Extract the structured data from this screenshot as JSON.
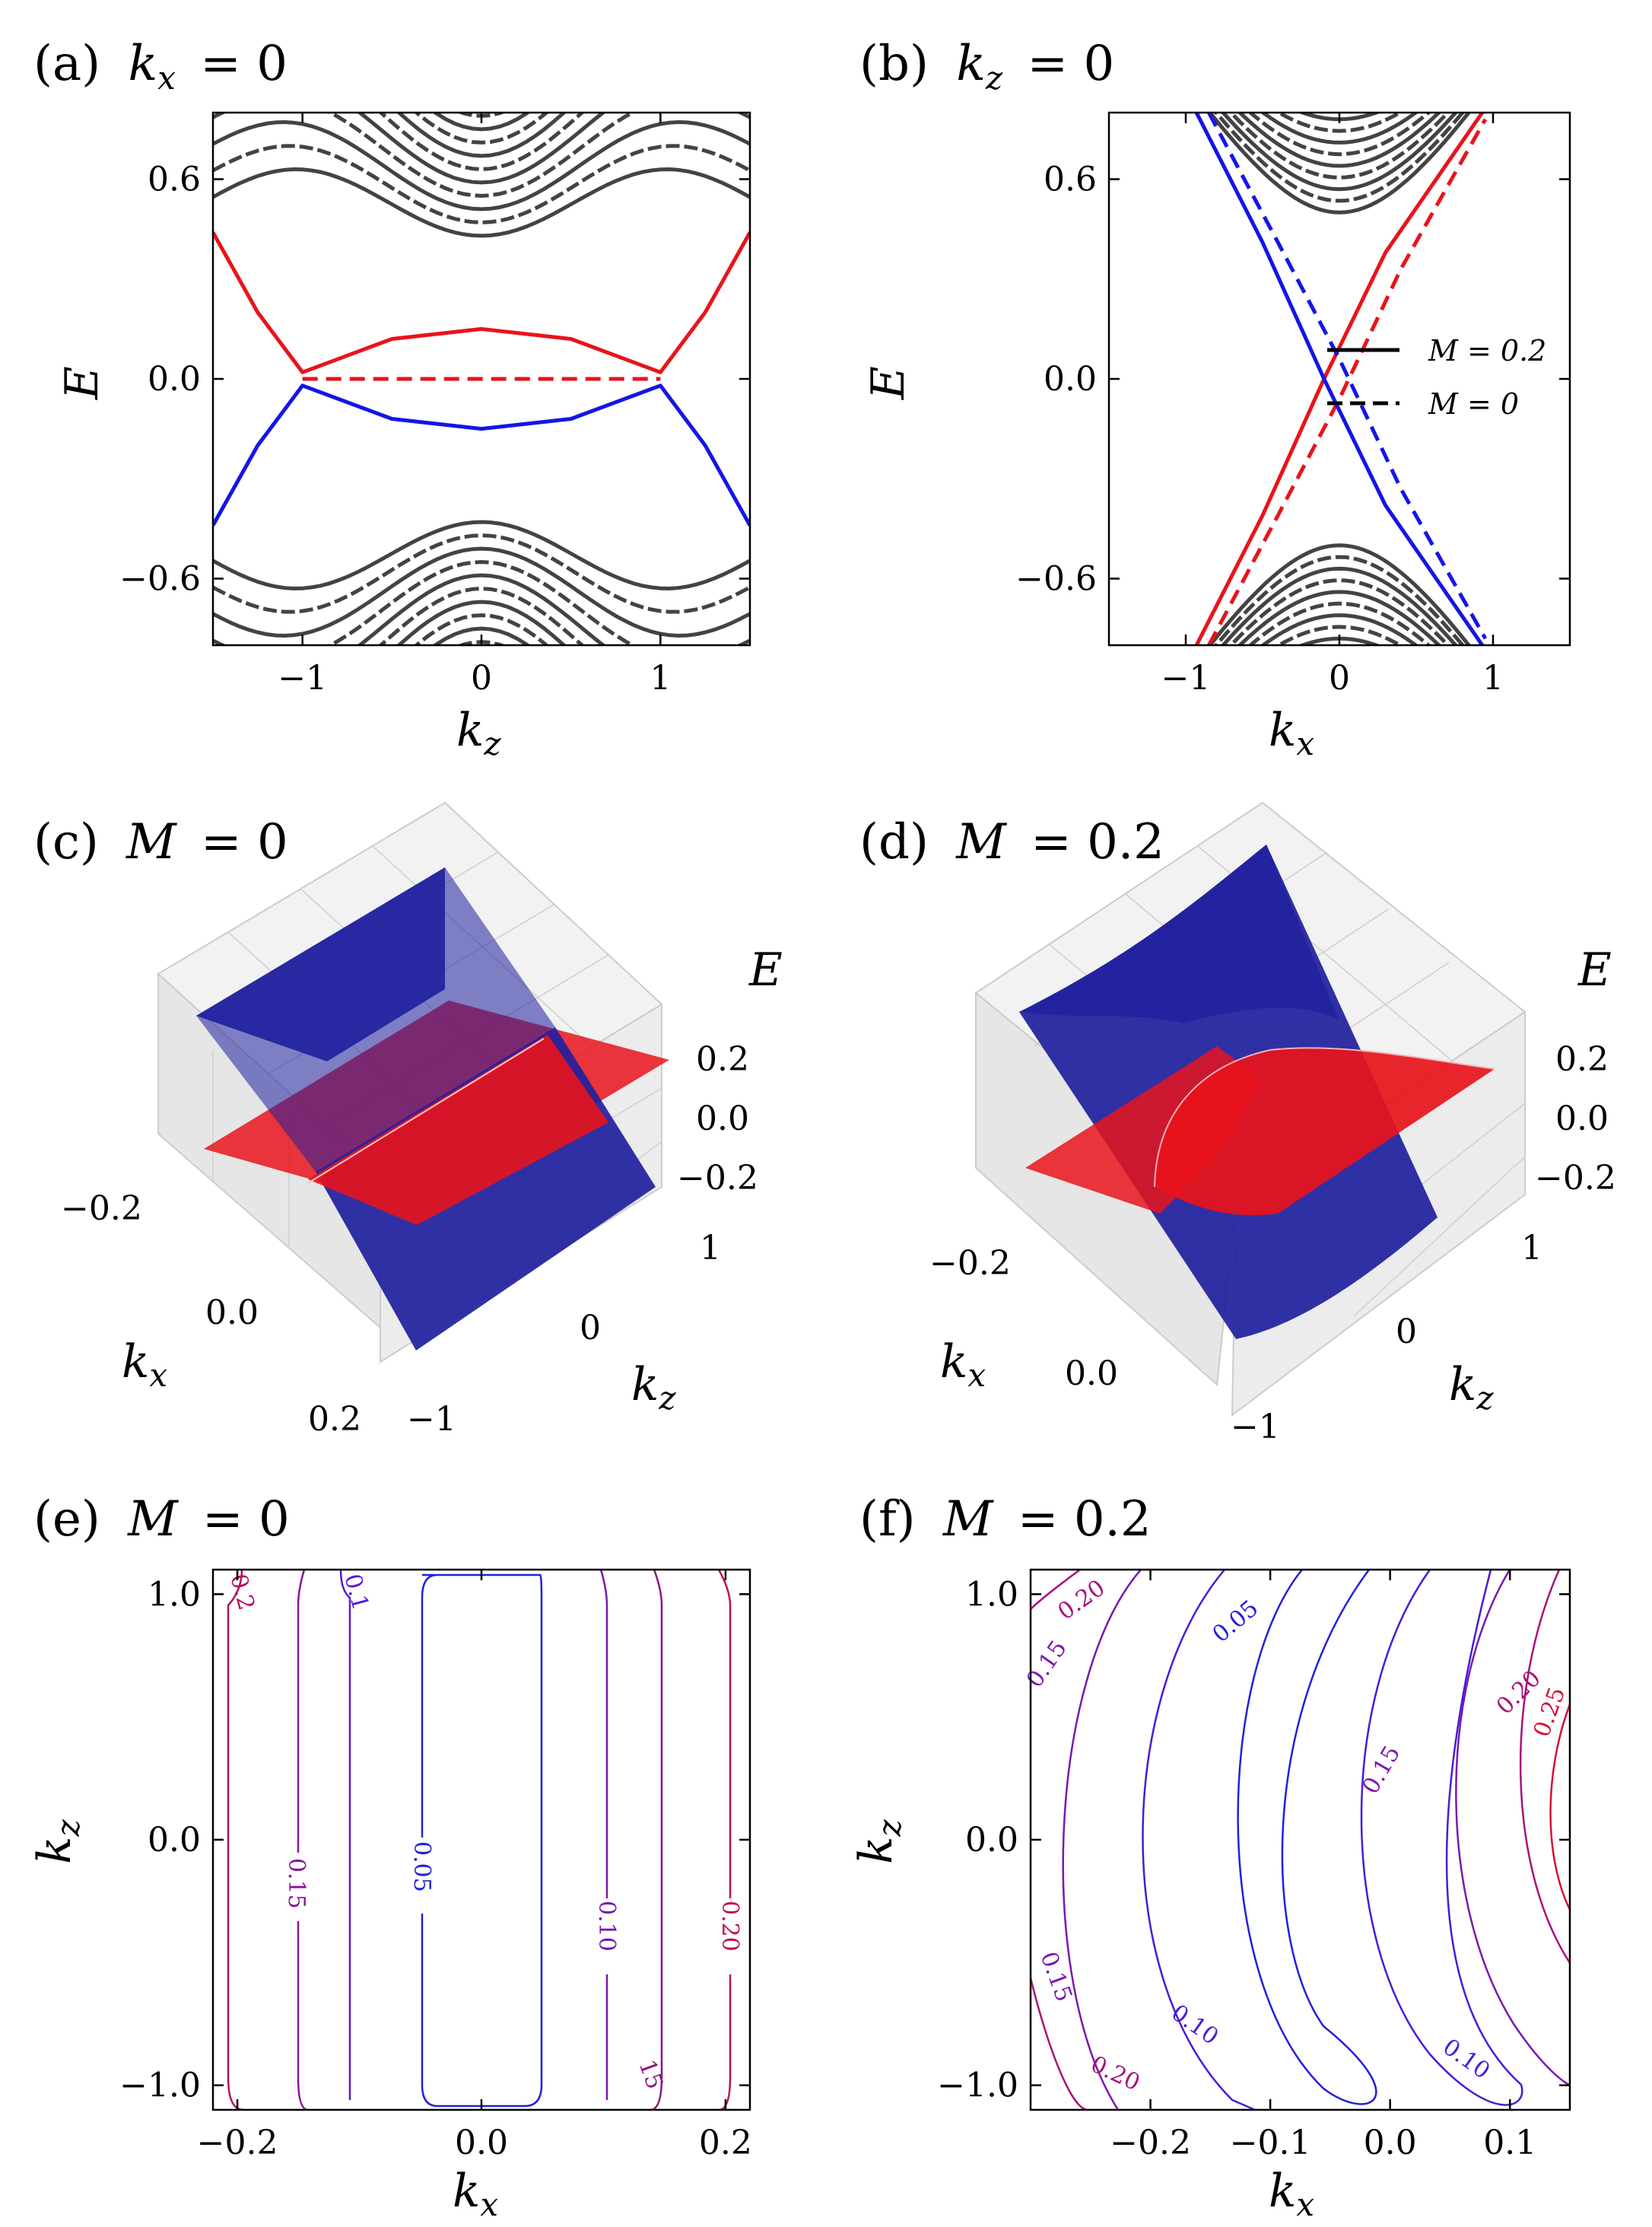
{
  "colors": {
    "red": "#e8141b",
    "blue": "#1515e6",
    "bulk": "#222222",
    "surf_blue": "#1f1f9e",
    "surf_red": "#e8141b"
  },
  "chart_data": [
    {
      "id": "a",
      "type": "line",
      "title": "(a) kx = 0",
      "title_prefix": "(a)",
      "title_var": "k",
      "title_sub": "x",
      "title_rest": "= 0",
      "xlabel": "k_z",
      "xlabel_main": "k",
      "xlabel_sub": "z",
      "ylabel": "E",
      "xlim": [
        -1.5,
        1.5
      ],
      "ylim": [
        -0.8,
        0.8
      ],
      "xticks": [
        -1,
        0,
        1
      ],
      "xtick_labels": [
        "−1",
        "0",
        "1"
      ],
      "yticks": [
        -0.6,
        0.0,
        0.6
      ],
      "ytick_labels": [
        "−0.6",
        "0.0",
        "0.6"
      ],
      "bulk_bands": {
        "description": "dense black solid/dashed bulk subbands",
        "gap_edge_at_k0": 0.5
      },
      "series": [
        {
          "color": "red",
          "style": "solid",
          "points": [
            [
              -1.5,
              0.44
            ],
            [
              -1.25,
              0.2
            ],
            [
              -1.0,
              0.02
            ],
            [
              -0.5,
              0.12
            ],
            [
              0,
              0.15
            ],
            [
              0.5,
              0.12
            ],
            [
              1.0,
              0.02
            ],
            [
              1.25,
              0.2
            ],
            [
              1.5,
              0.44
            ]
          ]
        },
        {
          "color": "red",
          "style": "dashed",
          "points": [
            [
              -1.0,
              0.0
            ],
            [
              1.0,
              0.0
            ]
          ]
        },
        {
          "color": "blue",
          "style": "solid",
          "points": [
            [
              -1.5,
              -0.44
            ],
            [
              -1.25,
              -0.2
            ],
            [
              -1.0,
              -0.02
            ],
            [
              -0.5,
              -0.12
            ],
            [
              0,
              -0.15
            ],
            [
              0.5,
              -0.12
            ],
            [
              1.0,
              -0.02
            ],
            [
              1.25,
              -0.2
            ],
            [
              1.5,
              -0.44
            ]
          ]
        }
      ]
    },
    {
      "id": "b",
      "type": "line",
      "title": "(b) kz = 0",
      "title_prefix": "(b)",
      "title_var": "k",
      "title_sub": "z",
      "title_rest": "= 0",
      "xlabel": "k_x",
      "xlabel_main": "k",
      "xlabel_sub": "x",
      "ylabel": "E",
      "xlim": [
        -1.5,
        1.5
      ],
      "ylim": [
        -0.8,
        0.8
      ],
      "xticks": [
        -1,
        0,
        1
      ],
      "xtick_labels": [
        "−1",
        "0",
        "1"
      ],
      "yticks": [
        -0.6,
        0.0,
        0.6
      ],
      "ytick_labels": [
        "−0.6",
        "0.0",
        "0.6"
      ],
      "legend": {
        "placement": "right",
        "entries": [
          {
            "label": "M = 0.2",
            "style": "solid"
          },
          {
            "label": "M = 0",
            "style": "dashed"
          }
        ]
      },
      "bulk_bands": {
        "gap_edge_at_k0": 0.5
      },
      "series": [
        {
          "color": "red",
          "style": "solid",
          "points": [
            [
              -0.93,
              -0.8
            ],
            [
              -0.5,
              -0.41
            ],
            [
              -0.1,
              0.0
            ],
            [
              0.3,
              0.38
            ],
            [
              0.93,
              0.8
            ]
          ]
        },
        {
          "color": "red",
          "style": "dashed",
          "points": [
            [
              -0.85,
              -0.8
            ],
            [
              -0.4,
              -0.41
            ],
            [
              0.0,
              -0.06
            ],
            [
              0.4,
              0.33
            ],
            [
              0.95,
              0.78
            ]
          ]
        },
        {
          "color": "blue",
          "style": "solid",
          "points": [
            [
              -0.93,
              0.8
            ],
            [
              -0.5,
              0.41
            ],
            [
              -0.1,
              0.0
            ],
            [
              0.3,
              -0.38
            ],
            [
              0.93,
              -0.8
            ]
          ]
        },
        {
          "color": "blue",
          "style": "dashed",
          "points": [
            [
              -0.85,
              0.8
            ],
            [
              -0.4,
              0.41
            ],
            [
              0.0,
              0.06
            ],
            [
              0.4,
              -0.33
            ],
            [
              0.95,
              -0.78
            ]
          ]
        }
      ]
    },
    {
      "id": "c",
      "type": "surface",
      "title": "(c) M = 0",
      "title_prefix": "(c)",
      "title_var": "M",
      "title_rest": "= 0",
      "zlabel": "E",
      "zticks": [
        "0.2",
        "0.0",
        "−0.2"
      ],
      "xlabel_main": "k",
      "xlabel_sub": "x",
      "xticks": [
        "−0.2",
        "0.0",
        "0.2"
      ],
      "ylabel_main": "k",
      "ylabel_sub": "z",
      "yticks": [
        "1",
        "0",
        "−1"
      ]
    },
    {
      "id": "d",
      "type": "surface",
      "title": "(d) M = 0.2",
      "title_prefix": "(d)",
      "title_var": "M",
      "title_rest": "= 0.2",
      "zlabel": "E",
      "zticks": [
        "0.2",
        "0.0",
        "−0.2"
      ],
      "xlabel_main": "k",
      "xlabel_sub": "x",
      "xticks": [
        "−0.2",
        "0.0"
      ],
      "ylabel_main": "k",
      "ylabel_sub": "z",
      "yticks": [
        "1",
        "0",
        "−1"
      ]
    },
    {
      "id": "e",
      "type": "contour",
      "title": "(e) M = 0",
      "title_prefix": "(e)",
      "title_var": "M",
      "title_rest": "= 0",
      "xlabel_main": "k",
      "xlabel_sub": "x",
      "ylabel_main": "k",
      "ylabel_sub": "z",
      "xlim": [
        -0.22,
        0.22
      ],
      "ylim": [
        -1.1,
        1.1
      ],
      "xticks": [
        -0.2,
        0.0,
        0.2
      ],
      "xtick_labels": [
        "−0.2",
        "0.0",
        "0.2"
      ],
      "yticks": [
        -1.0,
        0.0,
        1.0
      ],
      "ytick_labels": [
        "−1.0",
        "0.0",
        "1.0"
      ],
      "levels": [
        0.05,
        0.1,
        0.15,
        0.2
      ],
      "contour_labels": [
        "0.2",
        "0.1",
        "0.15",
        "0.05",
        "0.10",
        "0.20",
        "15"
      ]
    },
    {
      "id": "f",
      "type": "contour",
      "title": "(f) M = 0.2",
      "title_prefix": "(f)",
      "title_var": "M",
      "title_rest": "= 0.2",
      "xlabel_main": "k",
      "xlabel_sub": "x",
      "ylabel_main": "k",
      "ylabel_sub": "z",
      "xlim": [
        -0.3,
        0.15
      ],
      "ylim": [
        -1.1,
        1.1
      ],
      "xticks": [
        -0.2,
        -0.1,
        0.0,
        0.1
      ],
      "xtick_labels": [
        "−0.2",
        "−0.1",
        "0.0",
        "0.1"
      ],
      "yticks": [
        -1.0,
        0.0,
        1.0
      ],
      "ytick_labels": [
        "−1.0",
        "0.0",
        "1.0"
      ],
      "levels": [
        0.05,
        0.1,
        0.15,
        0.2,
        0.25
      ],
      "contour_labels": [
        "0.20",
        "0.15",
        "0.05",
        "0.15",
        "0.20",
        "0.25",
        "0.15",
        "0.20",
        "0.10",
        "0.10"
      ]
    }
  ]
}
